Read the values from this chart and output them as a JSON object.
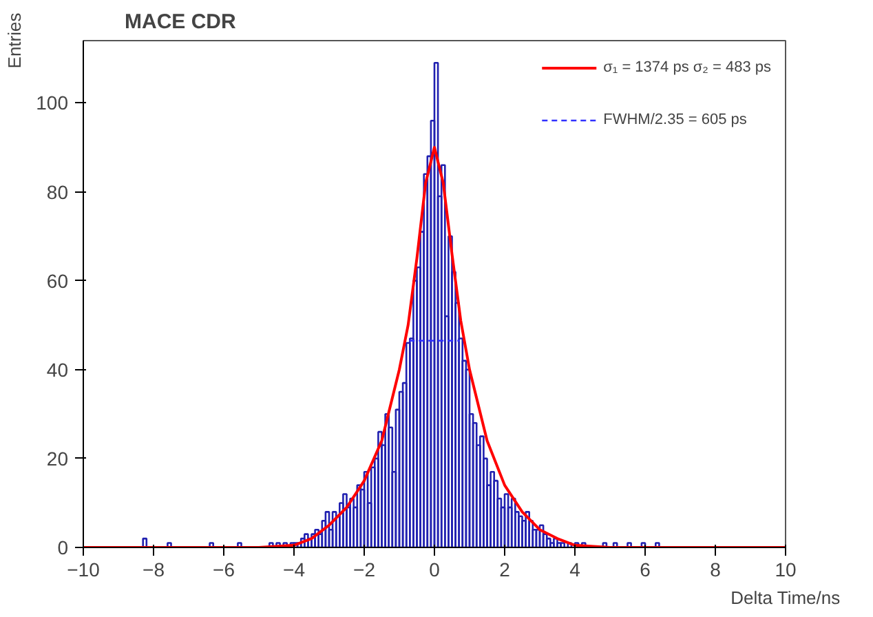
{
  "chart_data": {
    "type": "histogram",
    "title": "MACE CDR",
    "xlabel": "Delta Time/ns",
    "ylabel": "Entries",
    "xlim": [
      -10,
      10
    ],
    "ylim": [
      0,
      114
    ],
    "xticks": [
      {
        "value": -10,
        "label": "−10"
      },
      {
        "value": -8,
        "label": "−8"
      },
      {
        "value": -6,
        "label": "−6"
      },
      {
        "value": -4,
        "label": "−4"
      },
      {
        "value": -2,
        "label": "−2"
      },
      0,
      2,
      4,
      6,
      8,
      10
    ],
    "yticks": [
      0,
      20,
      40,
      60,
      80,
      100
    ],
    "grid": false,
    "legend": "top right",
    "series": [
      {
        "color": "#2020b0",
        "bins": [
          -10,
          -8.3,
          -8.2,
          -7.6,
          -7.5,
          -6.4,
          -6.3,
          -5.6,
          -5.5,
          -4.7,
          -4.6,
          -4.5,
          -4.4,
          -4.3,
          -4.2,
          -4.1,
          -4.0,
          -3.9,
          -3.8,
          -3.7,
          -3.6,
          -3.5,
          -3.4,
          -3.3,
          -3.2,
          -3.1,
          -3.0,
          -2.9,
          -2.8,
          -2.7,
          -2.6,
          -2.5,
          -2.4,
          -2.3,
          -2.2,
          -2.1,
          -2.0,
          -1.9,
          -1.8,
          -1.7,
          -1.6,
          -1.5,
          -1.4,
          -1.3,
          -1.2,
          -1.1,
          -1.0,
          -0.9,
          -0.8,
          -0.7,
          -0.6,
          -0.5,
          -0.4,
          -0.3,
          -0.2,
          -0.1,
          0.0,
          0.1,
          0.2,
          0.3,
          0.4,
          0.5,
          0.6,
          0.7,
          0.8,
          0.9,
          1.0,
          1.1,
          1.2,
          1.3,
          1.4,
          1.5,
          1.6,
          1.7,
          1.8,
          1.9,
          2.0,
          2.1,
          2.2,
          2.3,
          2.4,
          2.5,
          2.6,
          2.7,
          2.8,
          2.9,
          3.0,
          3.1,
          3.2,
          3.3,
          3.4,
          3.5,
          3.6,
          3.7,
          3.8,
          3.9,
          4.0,
          4.1,
          4.2,
          4.3,
          4.4,
          4.5,
          4.8,
          4.9,
          5.1,
          5.2,
          5.5,
          5.6,
          5.9,
          6.0,
          6.3,
          6.4,
          10
        ],
        "values": [
          0,
          2,
          0,
          1,
          0,
          1,
          0,
          1,
          0,
          1,
          0,
          1,
          0,
          1,
          0,
          1,
          1,
          1,
          2,
          3,
          2,
          3,
          4,
          3,
          6,
          8,
          4,
          8,
          7,
          10,
          12,
          9,
          11,
          9,
          14,
          13,
          17,
          10,
          18,
          20,
          26,
          23,
          30,
          27,
          17,
          31,
          35,
          37,
          46,
          47,
          60,
          63,
          71,
          84,
          88,
          96,
          109,
          79,
          86,
          52,
          70,
          62,
          55,
          47,
          42,
          40,
          30,
          28,
          23,
          25,
          20,
          14,
          17,
          15,
          11,
          9,
          12,
          9,
          11,
          8,
          7,
          6,
          8,
          6,
          4,
          4,
          5,
          3,
          2,
          1,
          2,
          1,
          1,
          0,
          1,
          0,
          1,
          0,
          1,
          0,
          0,
          0,
          1,
          0,
          1,
          0,
          1,
          0,
          1,
          0,
          1,
          0
        ]
      },
      {
        "type": "line",
        "name": "σ₁ = 1374 ps σ₂ = 483 ps",
        "color": "#ff0000",
        "line_style": "solid",
        "x": [
          -10,
          -5,
          -4,
          -3.5,
          -3,
          -2.5,
          -2,
          -1.5,
          -1,
          -0.75,
          -0.5,
          -0.25,
          0,
          0.25,
          0.5,
          0.75,
          1,
          1.5,
          2,
          2.5,
          3,
          3.5,
          4,
          5,
          10
        ],
        "values": [
          0,
          0,
          0.5,
          2,
          5,
          9,
          15,
          24,
          40,
          50,
          65,
          82,
          90,
          82,
          66,
          51,
          40,
          24,
          14,
          8,
          4,
          2,
          0.5,
          0,
          0
        ]
      },
      {
        "type": "line",
        "name": "FWHM/2.35 = 605 ps",
        "color": "#3030ff",
        "line_style": "dashed",
        "x": [
          -0.72,
          0.72
        ],
        "values": [
          46.5,
          46.5
        ]
      }
    ]
  }
}
